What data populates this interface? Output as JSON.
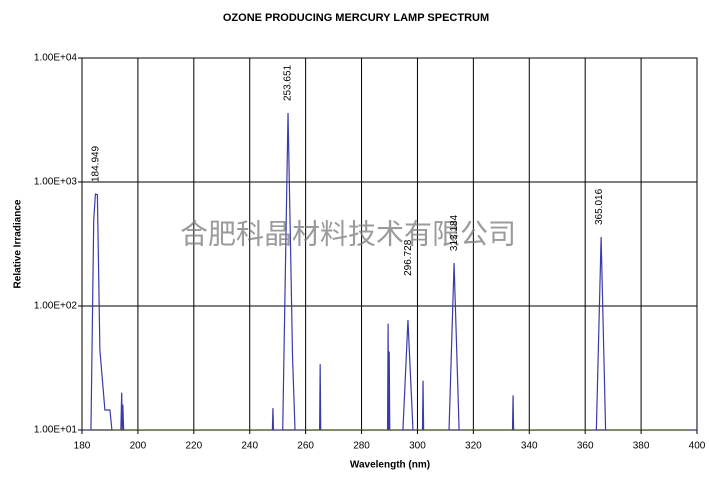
{
  "chart_data": {
    "type": "line",
    "title": "OZONE PRODUCING MERCURY LAMP SPECTRUM",
    "xlabel": "Wavelength (nm)",
    "ylabel": "Relative Irradiance",
    "watermark": "合肥科晶材料技术有限公司",
    "yscale": "log",
    "grid": true,
    "xlim": [
      180,
      400
    ],
    "xticks": [
      180,
      200,
      220,
      240,
      260,
      280,
      300,
      320,
      340,
      360,
      380,
      400
    ],
    "ylim": [
      10,
      10000
    ],
    "yticks": [
      {
        "value": 10,
        "label": "1.00E+01"
      },
      {
        "value": 100,
        "label": "1.00E+02"
      },
      {
        "value": 1000,
        "label": "1.00E+03"
      },
      {
        "value": 10000,
        "label": "1.00E+04"
      }
    ],
    "x": [
      180,
      183.2,
      184.2,
      184.8,
      185.5,
      186.4,
      188.2,
      190,
      190.7,
      193.9,
      194.2,
      194.4,
      194.6,
      194.9,
      248.1,
      248.3,
      248.5,
      251.8,
      253.7,
      254.6,
      255.3,
      256.2,
      265.0,
      265.2,
      265.4,
      289.3,
      289.5,
      289.7,
      289.9,
      290.1,
      294.8,
      296.6,
      298.4,
      301.8,
      302.0,
      302.2,
      311.3,
      313.1,
      314.9,
      334.0,
      334.2,
      334.4,
      364.0,
      365.7,
      367.3,
      400
    ],
    "series": [
      {
        "color": "#3a3aa8",
        "values": [
          10,
          10,
          500,
          800,
          790,
          44,
          14.5,
          14.5,
          10,
          10,
          20,
          10,
          16,
          10,
          10,
          15,
          10,
          10,
          3600,
          300,
          40,
          10,
          10,
          34,
          10,
          10,
          72,
          10,
          43,
          10,
          10,
          77,
          10,
          10,
          25,
          10,
          10,
          222,
          10,
          10,
          19,
          10,
          10,
          360,
          10,
          10
        ]
      }
    ],
    "annotations": [
      {
        "text": "184.949",
        "x": 184.949,
        "y": 800
      },
      {
        "text": "253.651",
        "x": 253.651,
        "y": 3600
      },
      {
        "text": "296.728",
        "x": 296.728,
        "y": 140
      },
      {
        "text": "313.184",
        "x": 313.184,
        "y": 222
      },
      {
        "text": "365.016",
        "x": 365.016,
        "y": 360
      }
    ]
  }
}
